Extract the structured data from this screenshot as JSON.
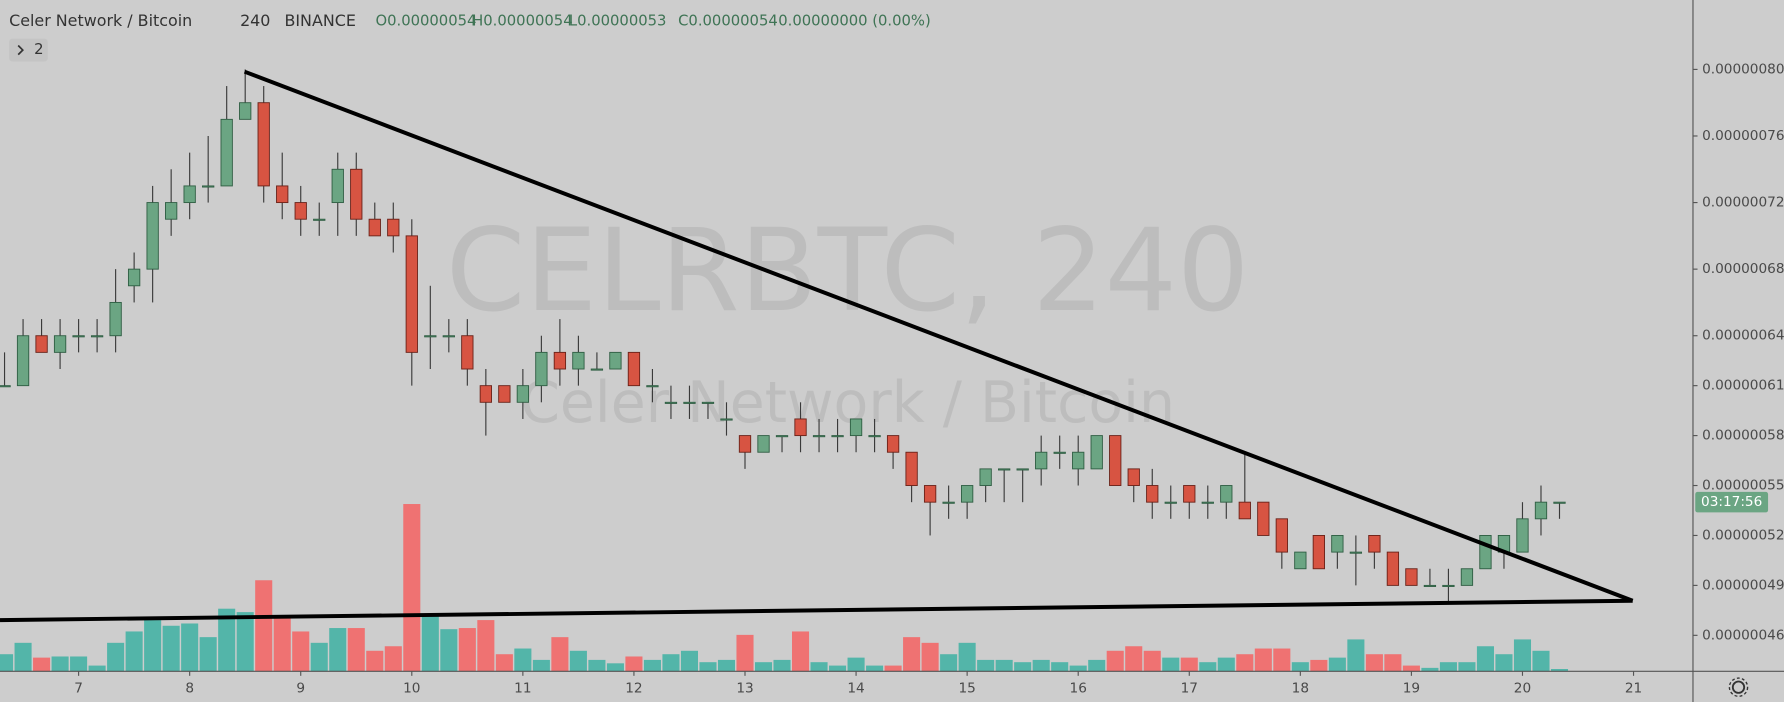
{
  "chart_data": {
    "type": "candlestick",
    "title": "Celer Network / Bitcoin",
    "interval": "240",
    "exchange": "BINANCE",
    "ohlc_labels": [
      "O0.00000054",
      "H0.00000054",
      "L0.00000053",
      "C0.00000054",
      "0.00000000 (0.00%)"
    ],
    "indicators_toggle": 2,
    "watermark": "CELRBTC, 240",
    "watermark_subtitle": "Celer Network / Bitcoin",
    "countdown": "03:17:56",
    "categories": [
      null,
      null,
      null,
      null,
      "7",
      null,
      null,
      null,
      null,
      null,
      "8",
      null,
      null,
      null,
      null,
      null,
      "9",
      null,
      null,
      null,
      null,
      null,
      "10",
      null,
      null,
      null,
      null,
      null,
      "11",
      null,
      null,
      null,
      null,
      null,
      "12",
      null,
      null,
      null,
      null,
      null,
      "13",
      null,
      null,
      null,
      null,
      null,
      "14",
      null,
      null,
      null,
      null,
      null,
      "15",
      null,
      null,
      null,
      null,
      null,
      "16",
      null,
      null,
      null,
      null,
      null,
      "17",
      null,
      null,
      null,
      null,
      null,
      "18",
      null,
      null,
      null,
      null,
      null,
      "19",
      null,
      null,
      null,
      null,
      null,
      "20",
      null,
      null,
      null,
      null,
      null,
      "21"
    ],
    "open": [
      6.1e-07,
      6.1e-07,
      6.4e-07,
      6.3e-07,
      6.4e-07,
      6.4e-07,
      6.4e-07,
      6.7e-07,
      6.8e-07,
      7.1e-07,
      7.2e-07,
      7.3e-07,
      7.3e-07,
      7.7e-07,
      7.8e-07,
      7.3e-07,
      7.2e-07,
      7.1e-07,
      7.2e-07,
      7.4e-07,
      7.1e-07,
      7.1e-07,
      7e-07,
      6.4e-07,
      6.4e-07,
      6.4e-07,
      6.1e-07,
      6.1e-07,
      6e-07,
      6.1e-07,
      6.3e-07,
      6.2e-07,
      6.2e-07,
      6.2e-07,
      6.3e-07,
      6.1e-07,
      6e-07,
      6e-07,
      6e-07,
      5.9e-07,
      5.8e-07,
      5.7e-07,
      5.8e-07,
      5.9e-07,
      5.8e-07,
      5.8e-07,
      5.8e-07,
      5.8e-07,
      5.8e-07,
      5.7e-07,
      5.5e-07,
      5.4e-07,
      5.4e-07,
      5.5e-07,
      5.6e-07,
      5.6e-07,
      5.6e-07,
      5.7e-07,
      5.6e-07,
      5.6e-07,
      5.8e-07,
      5.6e-07,
      5.5e-07,
      5.4e-07,
      5.5e-07,
      5.4e-07,
      5.4e-07,
      5.4e-07,
      5.4e-07,
      5.3e-07,
      5e-07,
      5.2e-07,
      5.1e-07,
      5.1e-07,
      5.2e-07,
      5.1e-07,
      5e-07,
      4.9e-07,
      4.9e-07,
      4.9e-07,
      5e-07,
      5.1e-07,
      5.1e-07,
      5.3e-07,
      5.4e-07,
      null,
      null,
      null,
      null
    ],
    "high": [
      6.3e-07,
      6.5e-07,
      6.5e-07,
      6.5e-07,
      6.5e-07,
      6.5e-07,
      6.8e-07,
      6.9e-07,
      7.3e-07,
      7.4e-07,
      7.5e-07,
      7.6e-07,
      7.9e-07,
      8e-07,
      7.9e-07,
      7.5e-07,
      7.3e-07,
      7.2e-07,
      7.5e-07,
      7.5e-07,
      7.2e-07,
      7.2e-07,
      7.1e-07,
      6.7e-07,
      6.5e-07,
      6.5e-07,
      6.2e-07,
      6.1e-07,
      6.2e-07,
      6.4e-07,
      6.5e-07,
      6.4e-07,
      6.3e-07,
      6.3e-07,
      6.3e-07,
      6.2e-07,
      6.1e-07,
      6.1e-07,
      6e-07,
      6e-07,
      5.8e-07,
      5.8e-07,
      5.8e-07,
      6e-07,
      5.9e-07,
      5.9e-07,
      5.9e-07,
      5.9e-07,
      5.8e-07,
      5.7e-07,
      5.5e-07,
      5.5e-07,
      5.5e-07,
      5.6e-07,
      5.6e-07,
      5.6e-07,
      5.8e-07,
      5.8e-07,
      5.8e-07,
      5.8e-07,
      5.8e-07,
      5.6e-07,
      5.6e-07,
      5.5e-07,
      5.5e-07,
      5.5e-07,
      5.5e-07,
      5.7e-07,
      5.4e-07,
      5.3e-07,
      5.1e-07,
      5.2e-07,
      5.2e-07,
      5.2e-07,
      5.2e-07,
      5.1e-07,
      5e-07,
      5e-07,
      5e-07,
      5e-07,
      5.2e-07,
      5.2e-07,
      5.4e-07,
      5.5e-07,
      5.4e-07,
      null,
      null,
      null,
      null
    ],
    "low": [
      6.1e-07,
      6.1e-07,
      6.3e-07,
      6.2e-07,
      6.3e-07,
      6.3e-07,
      6.3e-07,
      6.6e-07,
      6.6e-07,
      7e-07,
      7.1e-07,
      7.2e-07,
      7.3e-07,
      7.7e-07,
      7.2e-07,
      7.1e-07,
      7e-07,
      7e-07,
      7e-07,
      7e-07,
      7e-07,
      6.9e-07,
      6.1e-07,
      6.2e-07,
      6.3e-07,
      6.1e-07,
      5.8e-07,
      6e-07,
      5.9e-07,
      6e-07,
      6.1e-07,
      6.1e-07,
      6.2e-07,
      6.2e-07,
      6.1e-07,
      6e-07,
      5.9e-07,
      5.9e-07,
      5.9e-07,
      5.8e-07,
      5.6e-07,
      5.7e-07,
      5.7e-07,
      5.7e-07,
      5.7e-07,
      5.7e-07,
      5.7e-07,
      5.7e-07,
      5.6e-07,
      5.4e-07,
      5.2e-07,
      5.3e-07,
      5.3e-07,
      5.4e-07,
      5.4e-07,
      5.4e-07,
      5.5e-07,
      5.6e-07,
      5.5e-07,
      5.6e-07,
      5.5e-07,
      5.4e-07,
      5.3e-07,
      5.3e-07,
      5.3e-07,
      5.3e-07,
      5.3e-07,
      5.3e-07,
      5.2e-07,
      5e-07,
      5e-07,
      5e-07,
      5e-07,
      4.9e-07,
      5e-07,
      4.9e-07,
      4.9e-07,
      4.9e-07,
      4.8e-07,
      4.9e-07,
      5e-07,
      5e-07,
      5.1e-07,
      5.2e-07,
      5.3e-07,
      null,
      null,
      null,
      null
    ],
    "close": [
      6.1e-07,
      6.4e-07,
      6.3e-07,
      6.4e-07,
      6.4e-07,
      6.4e-07,
      6.6e-07,
      6.8e-07,
      7.2e-07,
      7.2e-07,
      7.3e-07,
      7.3e-07,
      7.7e-07,
      7.8e-07,
      7.3e-07,
      7.2e-07,
      7.1e-07,
      7.1e-07,
      7.4e-07,
      7.1e-07,
      7e-07,
      7e-07,
      6.3e-07,
      6.4e-07,
      6.4e-07,
      6.2e-07,
      6e-07,
      6e-07,
      6.1e-07,
      6.3e-07,
      6.2e-07,
      6.3e-07,
      6.2e-07,
      6.3e-07,
      6.1e-07,
      6.1e-07,
      6e-07,
      6e-07,
      6e-07,
      5.9e-07,
      5.7e-07,
      5.8e-07,
      5.8e-07,
      5.8e-07,
      5.8e-07,
      5.8e-07,
      5.9e-07,
      5.8e-07,
      5.7e-07,
      5.5e-07,
      5.4e-07,
      5.4e-07,
      5.5e-07,
      5.6e-07,
      5.6e-07,
      5.6e-07,
      5.7e-07,
      5.7e-07,
      5.7e-07,
      5.8e-07,
      5.5e-07,
      5.5e-07,
      5.4e-07,
      5.4e-07,
      5.4e-07,
      5.4e-07,
      5.5e-07,
      5.3e-07,
      5.2e-07,
      5.1e-07,
      5.1e-07,
      5e-07,
      5.2e-07,
      5.1e-07,
      5.1e-07,
      4.9e-07,
      4.9e-07,
      4.9e-07,
      4.9e-07,
      5e-07,
      5.2e-07,
      5.2e-07,
      5.3e-07,
      5.4e-07,
      5.4e-07,
      null,
      null,
      null,
      null
    ],
    "volume": [
      15,
      25,
      12,
      13,
      13,
      5,
      25,
      35,
      45,
      40,
      42,
      30,
      55,
      52,
      80,
      48,
      35,
      25,
      38,
      38,
      18,
      22,
      147,
      50,
      37,
      38,
      45,
      15,
      20,
      10,
      30,
      18,
      10,
      7,
      13,
      10,
      15,
      18,
      8,
      10,
      32,
      8,
      10,
      35,
      8,
      5,
      12,
      5,
      5,
      30,
      25,
      15,
      25,
      10,
      10,
      8,
      10,
      8,
      5,
      10,
      18,
      22,
      18,
      12,
      12,
      8,
      12,
      15,
      20,
      20,
      8,
      10,
      12,
      28,
      15,
      15,
      5,
      3,
      8,
      8,
      22,
      15,
      28,
      18,
      2,
      null,
      null,
      null,
      null
    ],
    "ylim": [
      4.384e-07,
      8.417e-07
    ],
    "yticks": [
      {
        "value": 8e-07,
        "label": "0.00000080"
      },
      {
        "value": 7.6e-07,
        "label": "0.00000076"
      },
      {
        "value": 7.2e-07,
        "label": "0.00000072"
      },
      {
        "value": 6.8e-07,
        "label": "0.00000068"
      },
      {
        "value": 6.4e-07,
        "label": "0.00000064"
      },
      {
        "value": 6.1e-07,
        "label": "0.00000061"
      },
      {
        "value": 5.8e-07,
        "label": "0.00000058"
      },
      {
        "value": 5.5e-07,
        "label": "0.00000055"
      },
      {
        "value": 5.2e-07,
        "label": "0.00000052"
      },
      {
        "value": 4.9e-07,
        "label": "0.00000049"
      },
      {
        "value": 4.6e-07,
        "label": "0.00000046"
      }
    ],
    "grid": false,
    "up_color": "#6ba583",
    "down_color": "#d75442",
    "volume_up_color": "#53b5a9",
    "volume_down_color": "#ef7272"
  }
}
